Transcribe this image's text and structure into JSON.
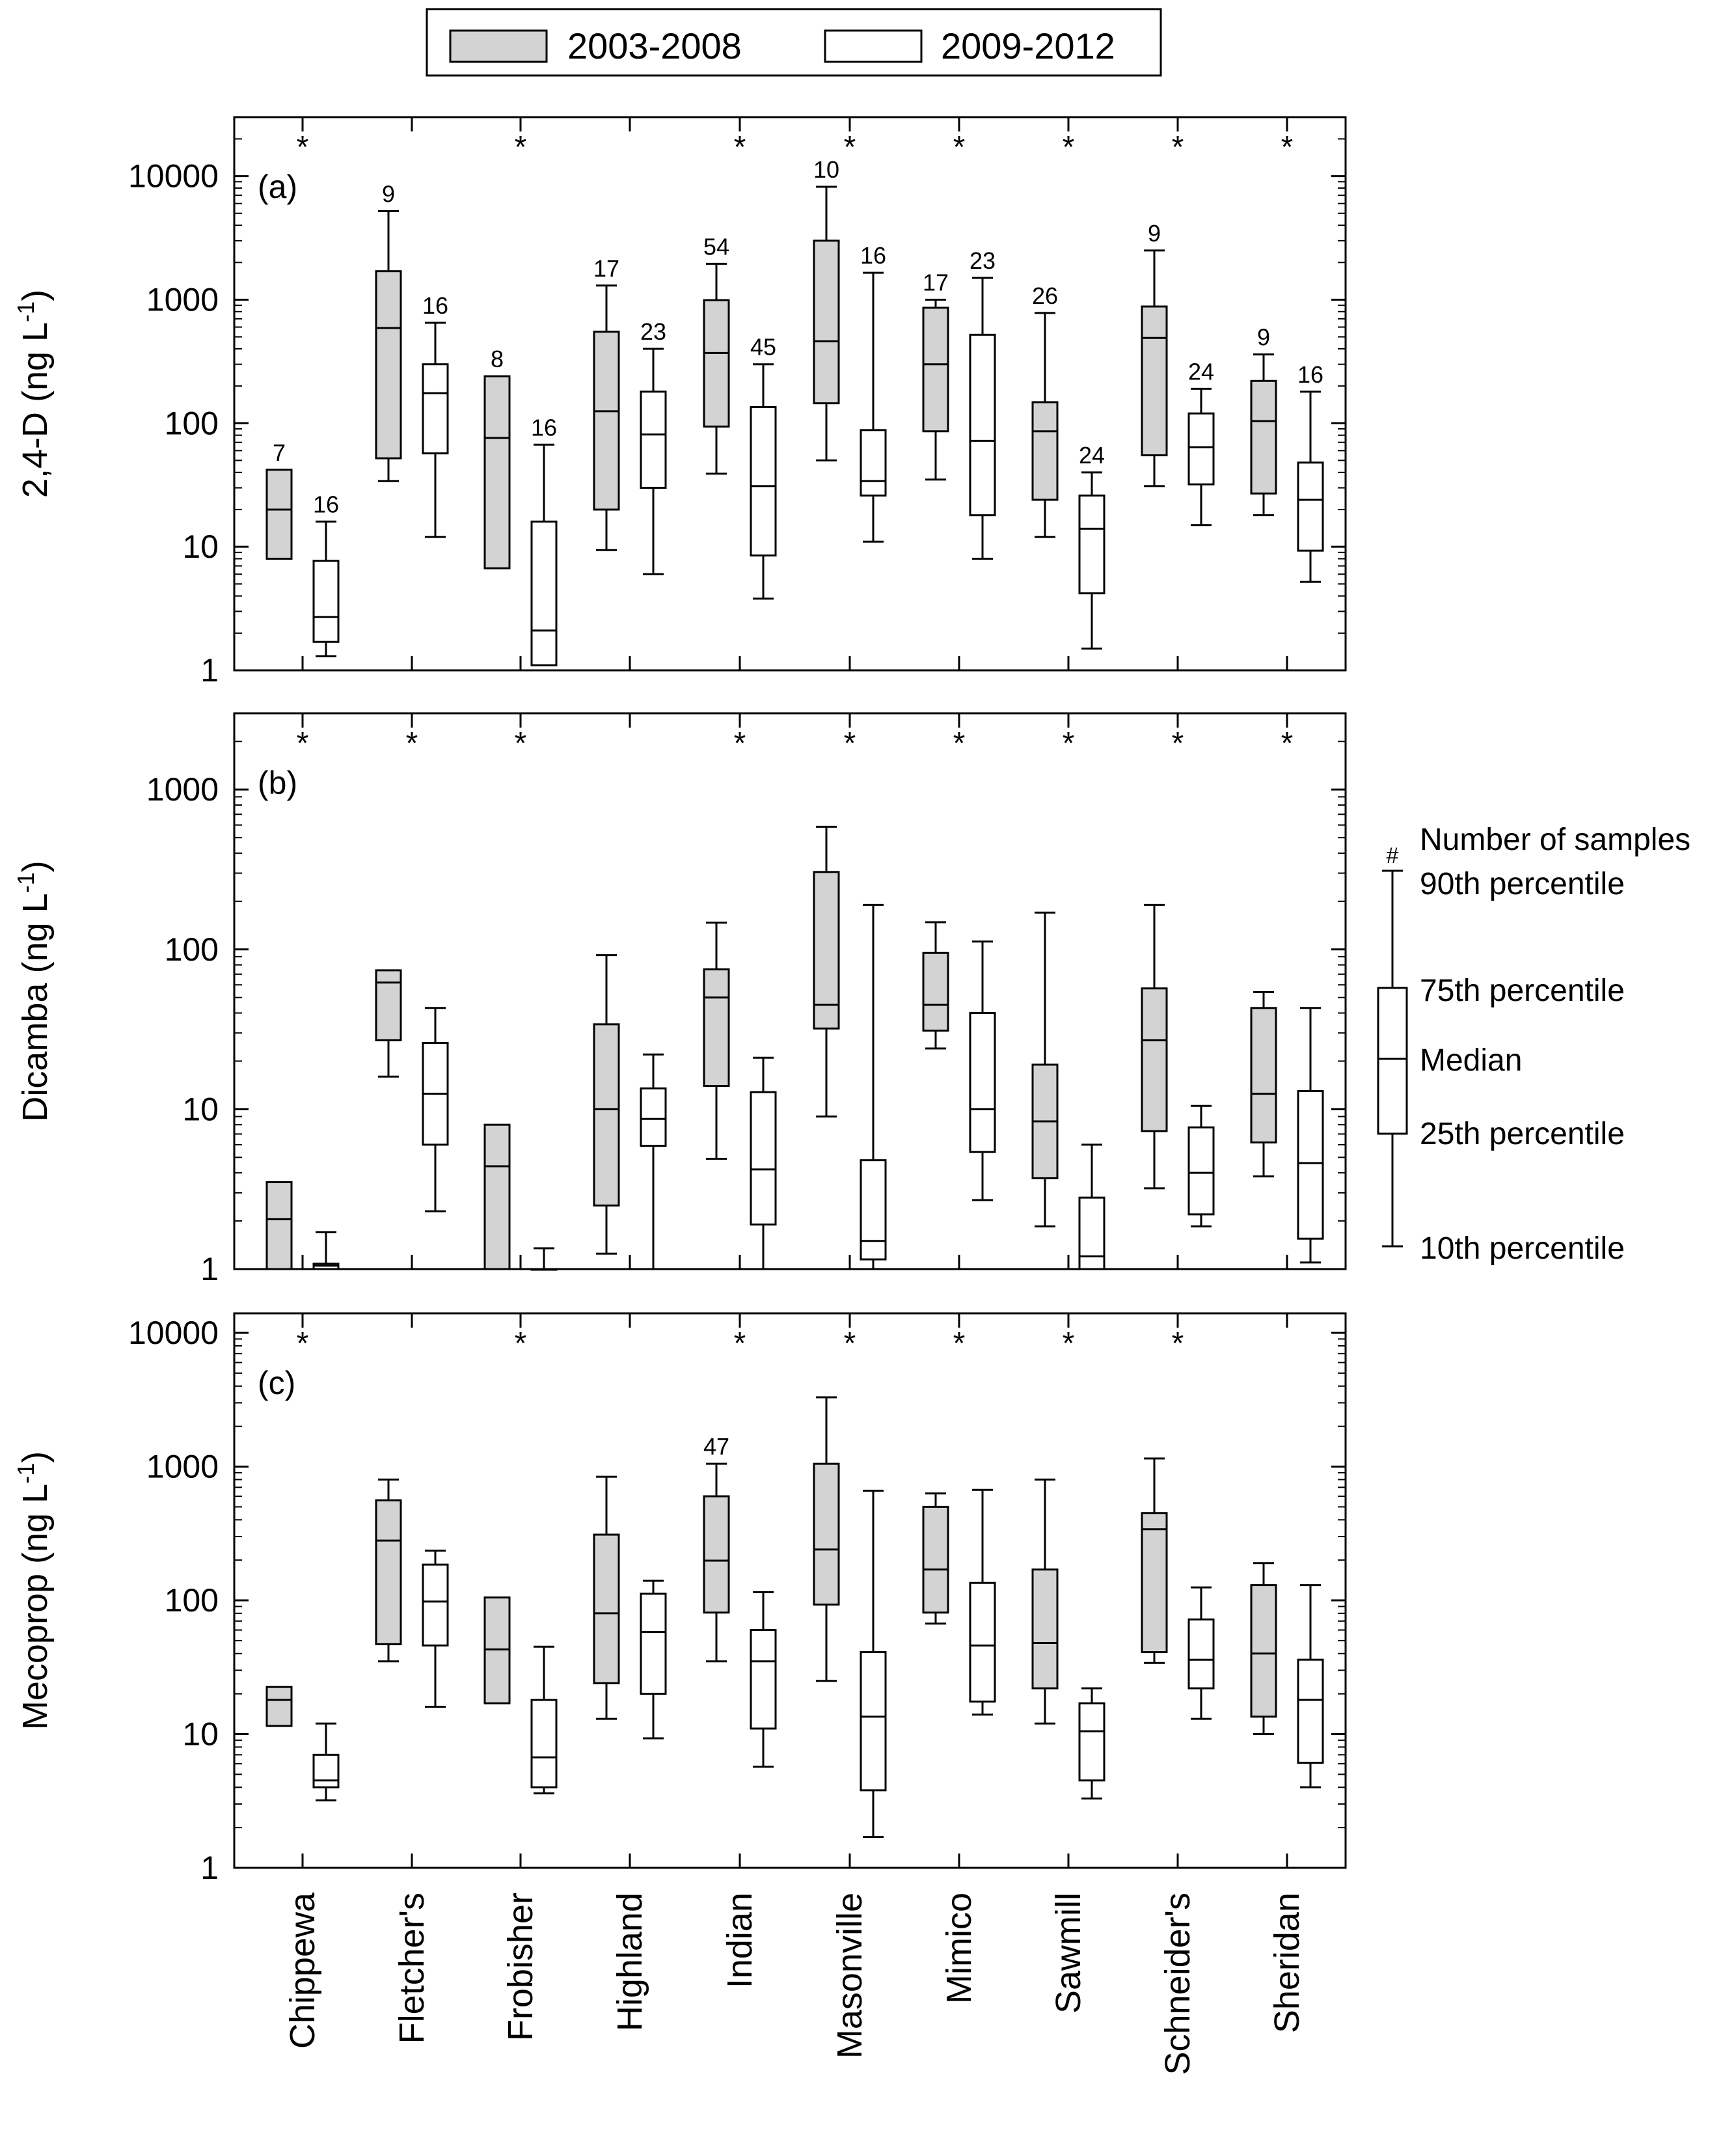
{
  "legend": {
    "items": [
      {
        "label": "2003-2008",
        "fill": "#d3d3d3"
      },
      {
        "label": "2009-2012",
        "fill": "#ffffff"
      }
    ]
  },
  "key": {
    "count_label": "Number of samples",
    "hash": "#",
    "p90": "90th percentile",
    "p75": "75th percentile",
    "median": "Median",
    "p25": "25th percentile",
    "p10": "10th percentile"
  },
  "chart_data": [
    {
      "type": "box",
      "panel": "(a)",
      "ylabel": "2,4-D (ng L",
      "ylabel_sup": "-1",
      "ylabel_close": ")",
      "scale": "log",
      "ylim": [
        1,
        30000
      ],
      "yticks": [
        1,
        10,
        100,
        1000,
        10000
      ],
      "categories": [
        "Chippewa",
        "Fletcher's",
        "Frobisher",
        "Highland",
        "Indian",
        "Masonville",
        "Mimico",
        "Sawmill",
        "Schneider's",
        "Sheridan"
      ],
      "significant": [
        true,
        false,
        true,
        false,
        true,
        true,
        true,
        true,
        true,
        true
      ],
      "series": [
        {
          "name": "2003-2008",
          "boxes": [
            {
              "p10": 8,
              "p25": 8,
              "median": 20,
              "p75": 42,
              "p90": 42,
              "n": "7"
            },
            {
              "p10": 34,
              "p25": 52,
              "median": 590,
              "p75": 1700,
              "p90": 5200,
              "n": "9"
            },
            {
              "p10": 6.7,
              "p25": 6.7,
              "median": 76,
              "p75": 240,
              "p90": 240,
              "n": "8"
            },
            {
              "p10": 9.4,
              "p25": 20,
              "median": 125,
              "p75": 550,
              "p90": 1300,
              "n": "17"
            },
            {
              "p10": 39,
              "p25": 94,
              "median": 370,
              "p75": 990,
              "p90": 1950,
              "n": "54"
            },
            {
              "p10": 50,
              "p25": 145,
              "median": 460,
              "p75": 3000,
              "p90": 8200,
              "n": "10"
            },
            {
              "p10": 35,
              "p25": 86,
              "median": 300,
              "p75": 860,
              "p90": 1000,
              "n": "17"
            },
            {
              "p10": 12,
              "p25": 24,
              "median": 86,
              "p75": 148,
              "p90": 780,
              "n": "26"
            },
            {
              "p10": 31,
              "p25": 55,
              "median": 490,
              "p75": 880,
              "p90": 2500,
              "n": "9"
            },
            {
              "p10": 18,
              "p25": 27,
              "median": 104,
              "p75": 220,
              "p90": 360,
              "n": "9"
            }
          ]
        },
        {
          "name": "2009-2012",
          "boxes": [
            {
              "p10": 1.3,
              "p25": 1.7,
              "median": 2.7,
              "p75": 7.7,
              "p90": 16,
              "n": "16"
            },
            {
              "p10": 12,
              "p25": 57,
              "median": 175,
              "p75": 300,
              "p90": 650,
              "n": "16"
            },
            {
              "p10": 1.1,
              "p25": 1.1,
              "median": 2.1,
              "p75": 16,
              "p90": 67,
              "n": "16"
            },
            {
              "p10": 6,
              "p25": 30,
              "median": 81,
              "p75": 180,
              "p90": 400,
              "n": "23"
            },
            {
              "p10": 3.8,
              "p25": 8.5,
              "median": 31,
              "p75": 135,
              "p90": 300,
              "n": "45"
            },
            {
              "p10": 11,
              "p25": 26,
              "median": 34,
              "p75": 88,
              "p90": 1650,
              "n": "16"
            },
            {
              "p10": 8,
              "p25": 18,
              "median": 72,
              "p75": 520,
              "p90": 1500,
              "n": "23"
            },
            {
              "p10": 1.5,
              "p25": 4.2,
              "median": 14,
              "p75": 26,
              "p90": 40,
              "n": "24"
            },
            {
              "p10": 15,
              "p25": 32,
              "median": 64,
              "p75": 120,
              "p90": 190,
              "n": "24"
            },
            {
              "p10": 5.2,
              "p25": 9.3,
              "median": 24,
              "p75": 48,
              "p90": 180,
              "n": "16"
            }
          ]
        }
      ]
    },
    {
      "type": "box",
      "panel": "(b)",
      "ylabel": "Dicamba (ng L",
      "ylabel_sup": "-1",
      "ylabel_close": ")",
      "scale": "log",
      "ylim": [
        1,
        3000
      ],
      "yticks": [
        1,
        10,
        100,
        1000
      ],
      "categories": [
        "Chippewa",
        "Fletcher's",
        "Frobisher",
        "Highland",
        "Indian",
        "Masonville",
        "Mimico",
        "Sawmill",
        "Schneider's",
        "Sheridan"
      ],
      "significant": [
        true,
        true,
        true,
        false,
        true,
        true,
        true,
        true,
        true,
        true
      ],
      "series": [
        {
          "name": "2003-2008",
          "boxes": [
            {
              "p10": 1,
              "p25": 1,
              "median": 2.05,
              "p75": 3.5,
              "p90": 3.5
            },
            {
              "p10": 16,
              "p25": 27,
              "median": 62,
              "p75": 74,
              "p90": 74
            },
            {
              "p10": 1,
              "p25": 1,
              "median": 4.4,
              "p75": 8,
              "p90": 8
            },
            {
              "p10": 1.25,
              "p25": 2.5,
              "median": 10,
              "p75": 34,
              "p90": 92
            },
            {
              "p10": 4.9,
              "p25": 14,
              "median": 50,
              "p75": 75,
              "p90": 147
            },
            {
              "p10": 9,
              "p25": 32,
              "median": 45,
              "p75": 305,
              "p90": 585
            },
            {
              "p10": 24,
              "p25": 31,
              "median": 45,
              "p75": 95,
              "p90": 148
            },
            {
              "p10": 1.85,
              "p25": 3.7,
              "median": 8.4,
              "p75": 19,
              "p90": 170
            },
            {
              "p10": 3.2,
              "p25": 7.3,
              "median": 27,
              "p75": 57,
              "p90": 190
            },
            {
              "p10": 3.8,
              "p25": 6.2,
              "median": 12.5,
              "p75": 43,
              "p90": 54
            }
          ]
        },
        {
          "name": "2009-2012",
          "boxes": [
            {
              "p10": 1,
              "p25": 1,
              "median": 1.05,
              "p75": 1.08,
              "p90": 1.7
            },
            {
              "p10": 2.3,
              "p25": 6,
              "median": 12.5,
              "p75": 26,
              "p90": 43
            },
            {
              "p10": 1,
              "p25": 1,
              "median": 1,
              "p75": 1,
              "p90": 1.35
            },
            {
              "p10": 1,
              "p25": 5.9,
              "median": 8.7,
              "p75": 13.5,
              "p90": 22
            },
            {
              "p10": 1,
              "p25": 1.9,
              "median": 4.2,
              "p75": 12.8,
              "p90": 21
            },
            {
              "p10": 1,
              "p25": 1.15,
              "median": 1.5,
              "p75": 4.8,
              "p90": 190
            },
            {
              "p10": 2.7,
              "p25": 5.4,
              "median": 10,
              "p75": 40,
              "p90": 112
            },
            {
              "p10": 1,
              "p25": 1,
              "median": 1.2,
              "p75": 2.8,
              "p90": 6
            },
            {
              "p10": 1.85,
              "p25": 2.2,
              "median": 4,
              "p75": 7.7,
              "p90": 10.5
            },
            {
              "p10": 1.1,
              "p25": 1.55,
              "median": 4.6,
              "p75": 13,
              "p90": 43
            }
          ]
        }
      ]
    },
    {
      "type": "box",
      "panel": "(c)",
      "ylabel": "Mecoprop (ng L",
      "ylabel_sup": "-1",
      "ylabel_close": ")",
      "scale": "log",
      "ylim": [
        1,
        14000
      ],
      "yticks": [
        1,
        10,
        100,
        1000,
        10000
      ],
      "categories": [
        "Chippewa",
        "Fletcher's",
        "Frobisher",
        "Highland",
        "Indian",
        "Masonville",
        "Mimico",
        "Sawmill",
        "Schneider's",
        "Sheridan"
      ],
      "significant": [
        true,
        false,
        true,
        false,
        true,
        true,
        true,
        true,
        true,
        false
      ],
      "series": [
        {
          "name": "2003-2008",
          "boxes": [
            {
              "p10": 11.5,
              "p25": 11.5,
              "median": 18,
              "p75": 22.5,
              "p90": 22.5
            },
            {
              "p10": 35,
              "p25": 47,
              "median": 280,
              "p75": 560,
              "p90": 800
            },
            {
              "p10": 17,
              "p25": 17,
              "median": 43,
              "p75": 105,
              "p90": 105
            },
            {
              "p10": 13,
              "p25": 24,
              "median": 80,
              "p75": 310,
              "p90": 840
            },
            {
              "p10": 35,
              "p25": 81,
              "median": 198,
              "p75": 600,
              "p90": 1050,
              "n": "47"
            },
            {
              "p10": 25,
              "p25": 93,
              "median": 240,
              "p75": 1050,
              "p90": 3300
            },
            {
              "p10": 67,
              "p25": 81,
              "median": 170,
              "p75": 500,
              "p90": 630
            },
            {
              "p10": 12,
              "p25": 22,
              "median": 48,
              "p75": 170,
              "p90": 800
            },
            {
              "p10": 34,
              "p25": 41,
              "median": 340,
              "p75": 450,
              "p90": 1150
            },
            {
              "p10": 10,
              "p25": 13.5,
              "median": 40,
              "p75": 130,
              "p90": 190
            }
          ]
        },
        {
          "name": "2009-2012",
          "boxes": [
            {
              "p10": 3.2,
              "p25": 4,
              "median": 4.5,
              "p75": 7,
              "p90": 12
            },
            {
              "p10": 16,
              "p25": 46,
              "median": 98,
              "p75": 185,
              "p90": 235
            },
            {
              "p10": 3.6,
              "p25": 4,
              "median": 6.7,
              "p75": 18,
              "p90": 45
            },
            {
              "p10": 9.3,
              "p25": 20,
              "median": 58,
              "p75": 112,
              "p90": 140
            },
            {
              "p10": 5.7,
              "p25": 11,
              "median": 35,
              "p75": 60,
              "p90": 115
            },
            {
              "p10": 1.7,
              "p25": 3.8,
              "median": 13.5,
              "p75": 41,
              "p90": 660
            },
            {
              "p10": 14,
              "p25": 17.5,
              "median": 46,
              "p75": 135,
              "p90": 670
            },
            {
              "p10": 3.3,
              "p25": 4.5,
              "median": 10.5,
              "p75": 17,
              "p90": 22
            },
            {
              "p10": 13,
              "p25": 22,
              "median": 36,
              "p75": 72,
              "p90": 125
            },
            {
              "p10": 4,
              "p25": 6.1,
              "median": 18,
              "p75": 36,
              "p90": 130
            }
          ]
        }
      ]
    }
  ]
}
